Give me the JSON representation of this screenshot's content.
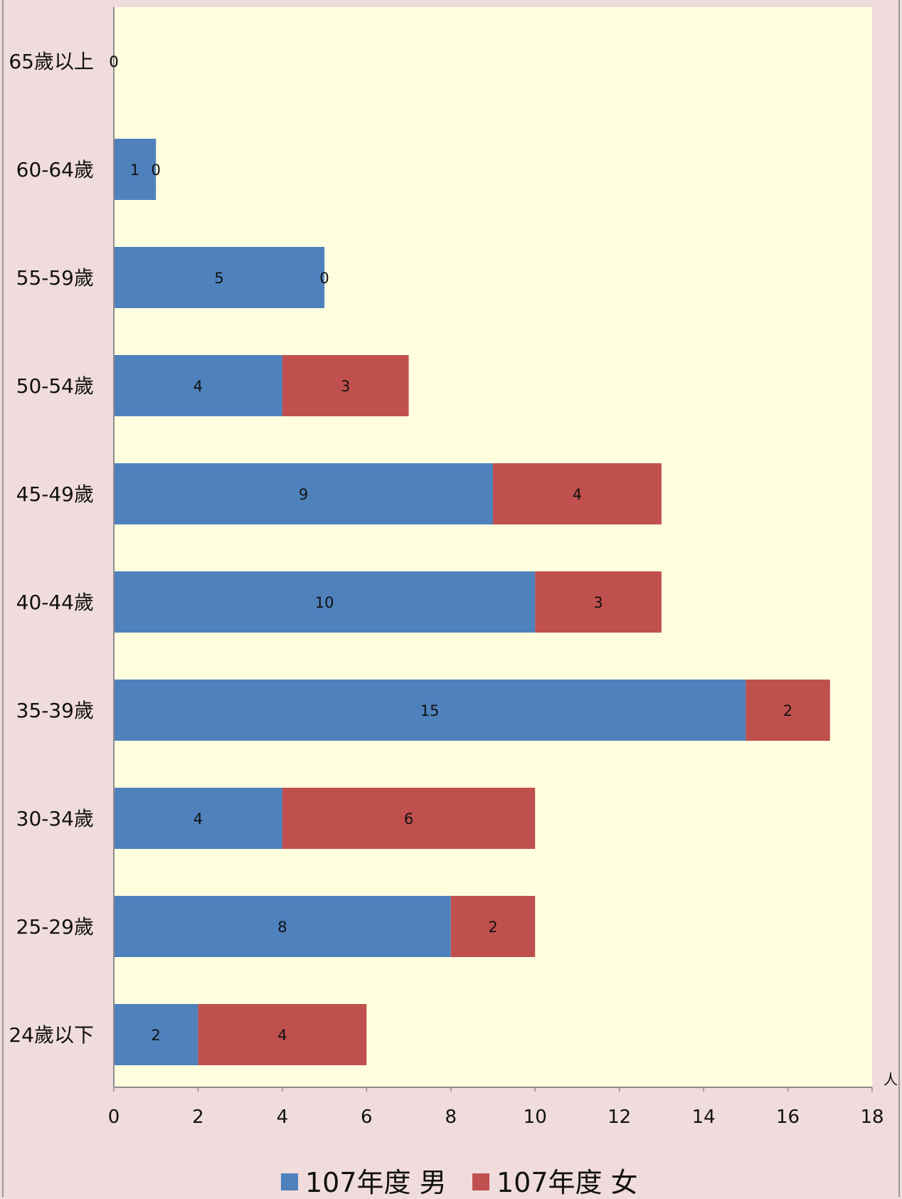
{
  "colors": {
    "background": "#f0dcdc",
    "plot_area": "#ffffe0",
    "male": "#4f81bd",
    "female": "#c0504d",
    "axis": "#8c8c8c"
  },
  "chart_data": {
    "type": "bar",
    "orientation": "horizontal",
    "stacked": true,
    "title": "",
    "xlabel": "",
    "ylabel": "",
    "x_unit": "人",
    "xlim": [
      0,
      18
    ],
    "x_ticks": [
      "0",
      "2",
      "4",
      "6",
      "8",
      "10",
      "12",
      "14",
      "16",
      "18"
    ],
    "grid": false,
    "legend_position": "bottom",
    "categories": [
      "24歲以下",
      "25-29歲",
      "30-34歲",
      "35-39歲",
      "40-44歲",
      "45-49歲",
      "50-54歲",
      "55-59歲",
      "60-64歲",
      "65歲以上"
    ],
    "series": [
      {
        "name": "107年度 男",
        "color": "#4f81bd",
        "values": [
          2,
          8,
          4,
          15,
          10,
          9,
          4,
          5,
          1,
          0
        ]
      },
      {
        "name": "107年度 女",
        "color": "#c0504d",
        "values": [
          4,
          2,
          6,
          2,
          3,
          4,
          3,
          0,
          0,
          0
        ]
      }
    ]
  }
}
